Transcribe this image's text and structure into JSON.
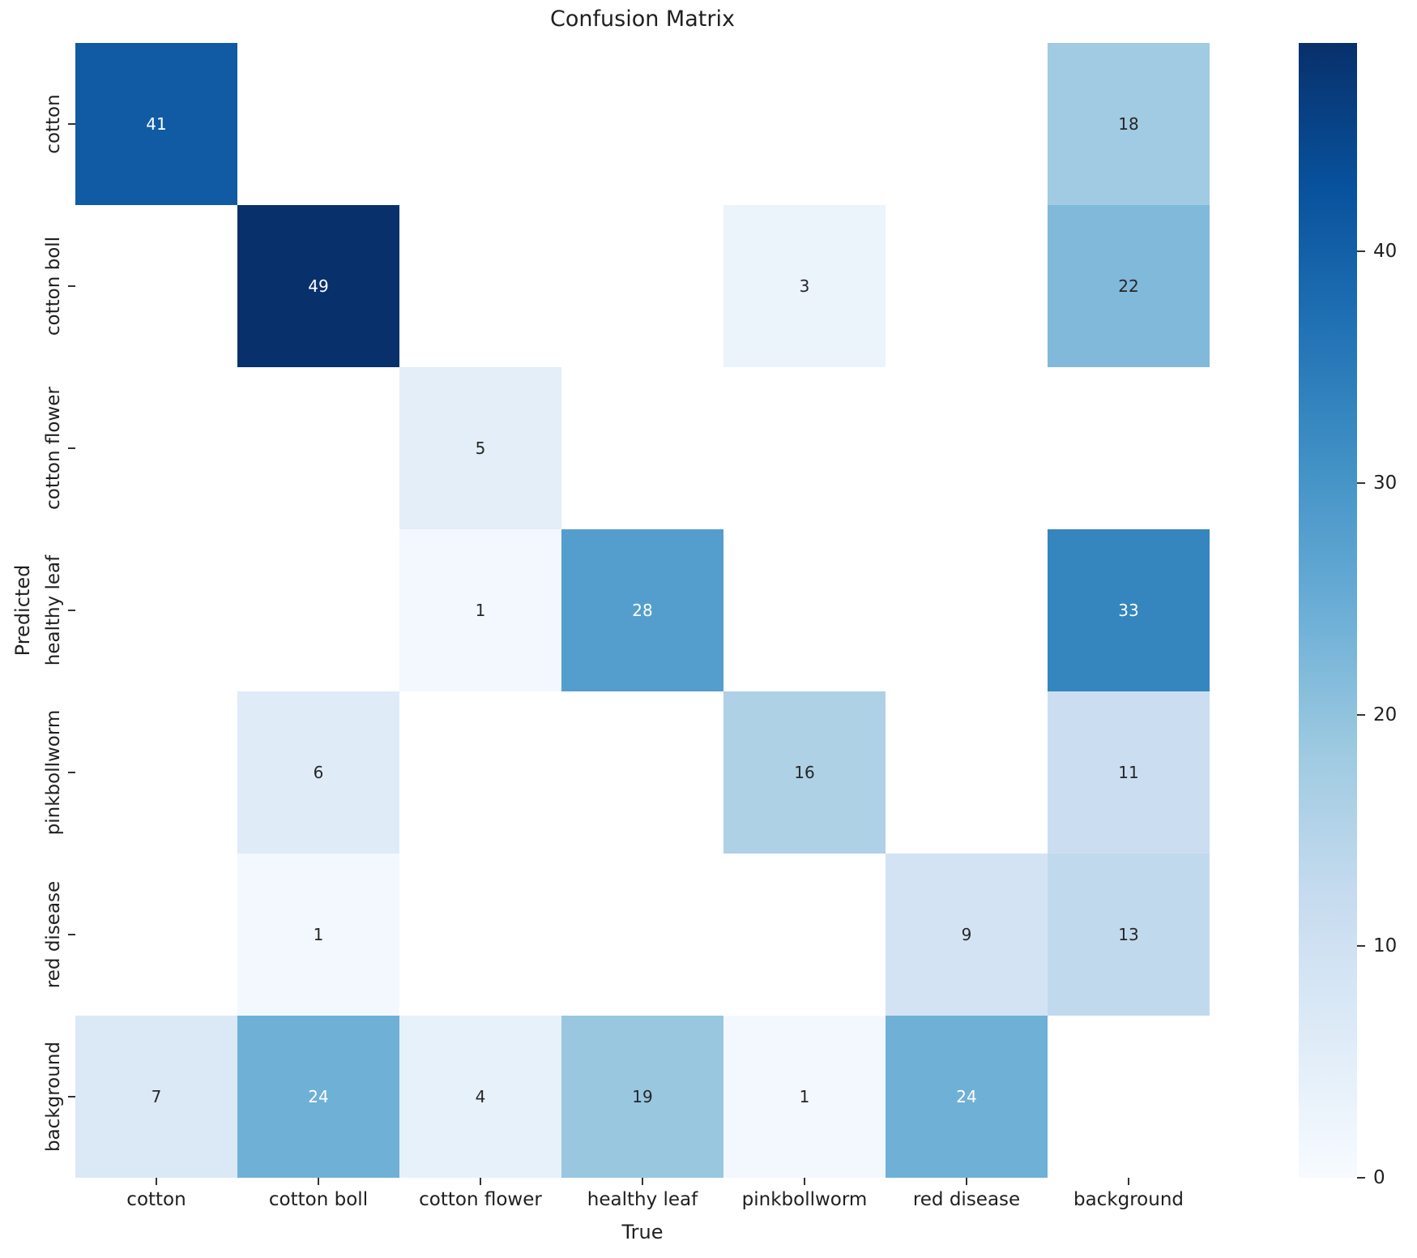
{
  "title": "Confusion Matrix",
  "chart_data": {
    "type": "heatmap",
    "title": "Confusion Matrix",
    "xlabel": "True",
    "ylabel": "Predicted",
    "x_categories": [
      "cotton",
      "cotton boll",
      "cotton flower",
      "healthy leaf",
      "pinkbollworm",
      "red disease",
      "background"
    ],
    "y_categories": [
      "cotton",
      "cotton boll",
      "cotton flower",
      "healthy leaf",
      "pinkbollworm",
      "red disease",
      "background"
    ],
    "matrix": [
      [
        41,
        null,
        null,
        null,
        null,
        null,
        18
      ],
      [
        null,
        49,
        null,
        null,
        3,
        null,
        22
      ],
      [
        null,
        null,
        5,
        null,
        null,
        null,
        null
      ],
      [
        null,
        null,
        1,
        28,
        null,
        null,
        33
      ],
      [
        null,
        6,
        null,
        null,
        16,
        null,
        11
      ],
      [
        null,
        1,
        null,
        null,
        null,
        9,
        13
      ],
      [
        7,
        24,
        4,
        19,
        1,
        24,
        null
      ]
    ],
    "vmin": 0,
    "vmax": 49,
    "colormap": "Blues",
    "colormap_stops": [
      "#f7fbff",
      "#deebf7",
      "#c6dbef",
      "#9ecae1",
      "#6baed6",
      "#4292c6",
      "#2171b5",
      "#08519c",
      "#08306b"
    ],
    "empty_cell_color": "#ffffff",
    "annotation_dark_color": "#262626",
    "annotation_light_color": "#ffffff",
    "colorbar_ticks": [
      0,
      10,
      20,
      30,
      40
    ],
    "colorbar_position": "right",
    "grid": false,
    "axes_text_color": "#1f1f1f"
  }
}
